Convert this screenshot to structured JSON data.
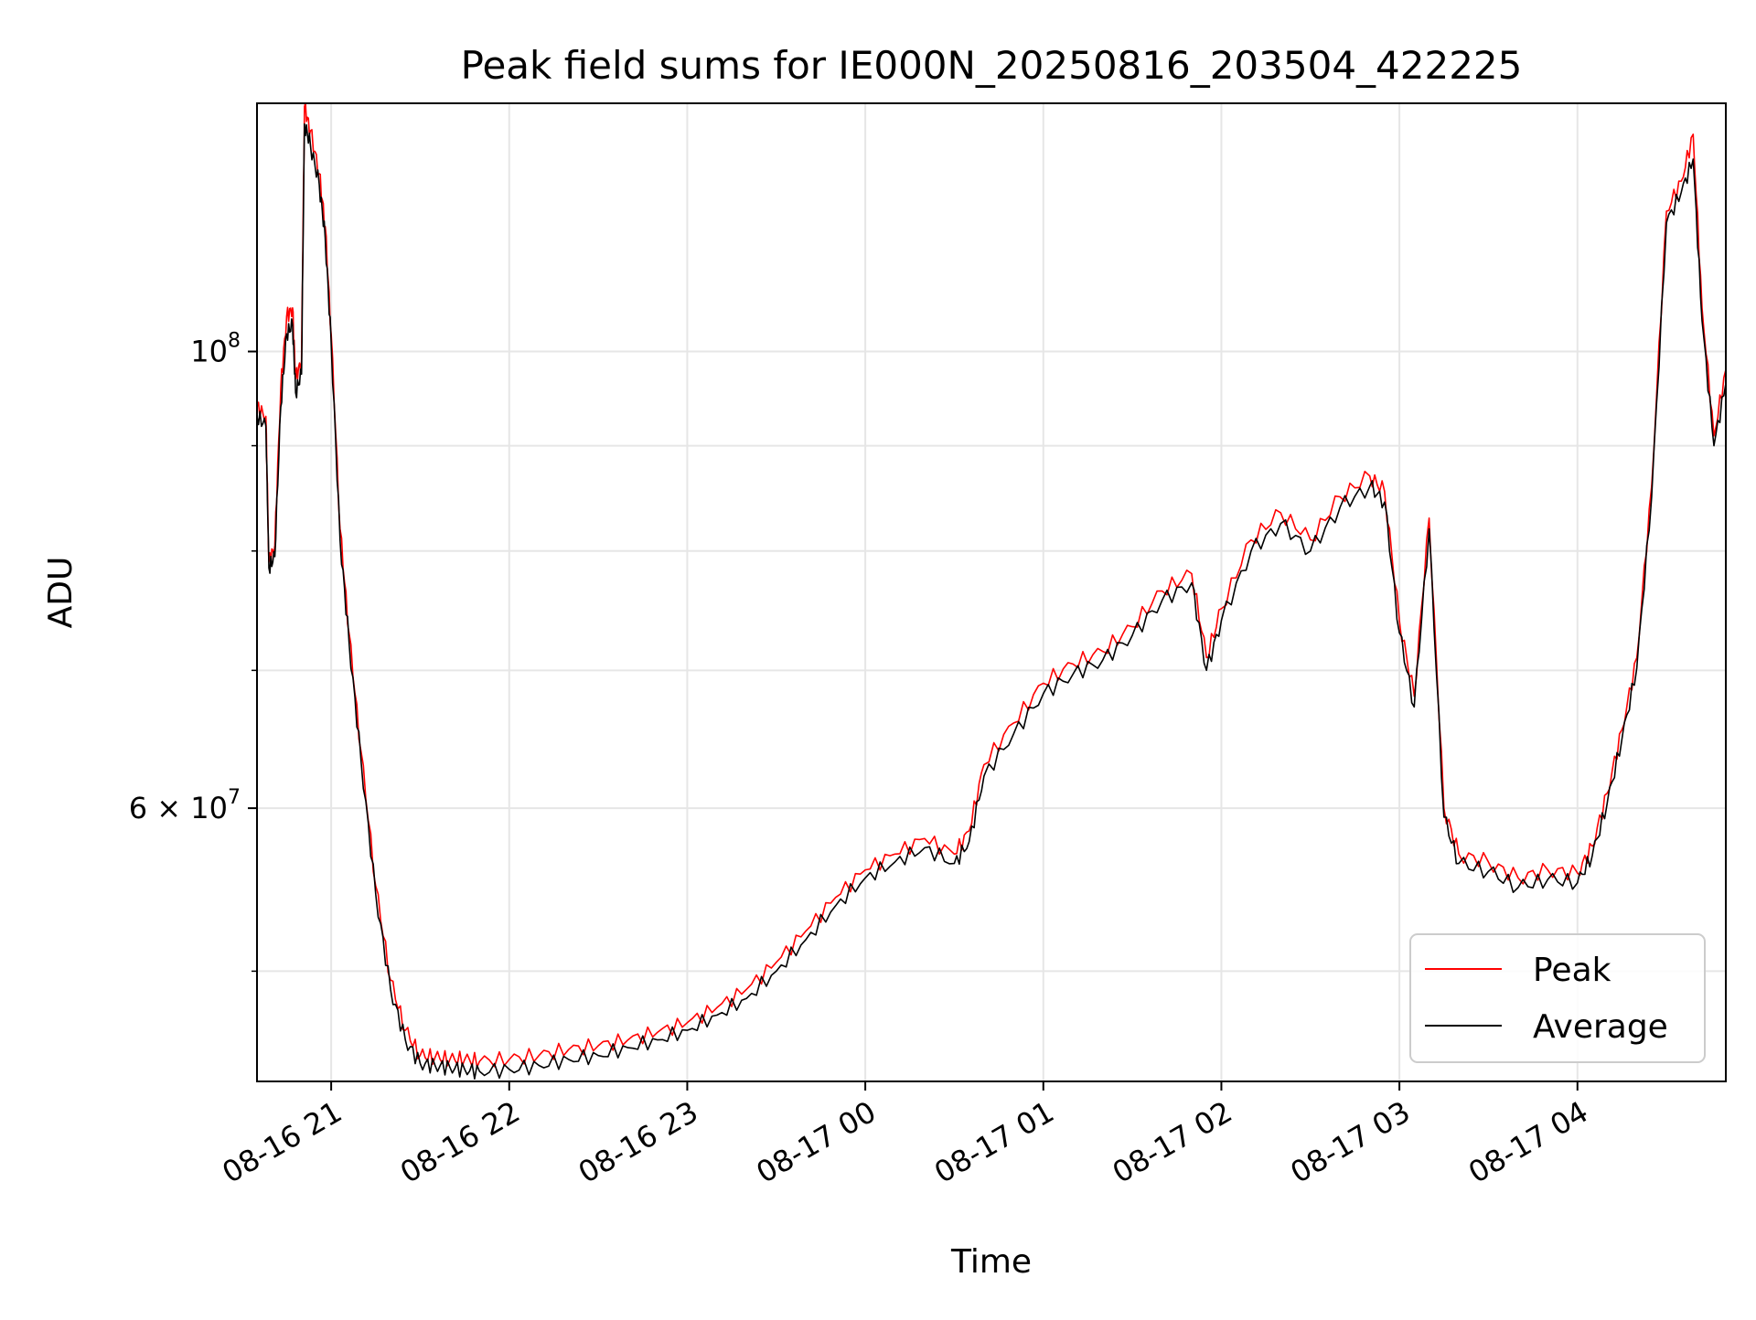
{
  "chart_data": {
    "type": "line",
    "title": "Peak field sums for IE000N_20250816_203504_422225",
    "xlabel": "Time",
    "ylabel": "ADU",
    "y_scale": "log",
    "ylim": [
      44200000,
      132000000
    ],
    "xlim": [
      "2025-08-16 20:35",
      "2025-08-17 04:50"
    ],
    "grid": true,
    "legend_position": "lower-right",
    "x_ticks": [
      {
        "t": "2025-08-16 21:00",
        "label": "08-16 21"
      },
      {
        "t": "2025-08-16 22:00",
        "label": "08-16 22"
      },
      {
        "t": "2025-08-16 23:00",
        "label": "08-16 23"
      },
      {
        "t": "2025-08-17 00:00",
        "label": "08-17 00"
      },
      {
        "t": "2025-08-17 01:00",
        "label": "08-17 01"
      },
      {
        "t": "2025-08-17 02:00",
        "label": "08-17 02"
      },
      {
        "t": "2025-08-17 03:00",
        "label": "08-17 03"
      },
      {
        "t": "2025-08-17 04:00",
        "label": "08-17 04"
      }
    ],
    "y_major_ticks": [
      {
        "value": 100000000,
        "base": "10",
        "exp": "8"
      },
      {
        "value": 60000000,
        "mant": "6",
        "base": "10",
        "exp": "7"
      }
    ],
    "y_minor_ticks": [
      50000000,
      70000000,
      80000000,
      90000000
    ],
    "series": [
      {
        "name": "Peak",
        "color": "#ff0000",
        "points": [
          [
            "2025-08-16 20:35",
            94000000
          ],
          [
            "2025-08-16 20:38",
            93000000
          ],
          [
            "2025-08-16 20:39",
            79000000
          ],
          [
            "2025-08-16 20:41",
            80500000
          ],
          [
            "2025-08-16 20:43",
            96000000
          ],
          [
            "2025-08-16 20:45",
            104000000
          ],
          [
            "2025-08-16 20:47",
            105000000
          ],
          [
            "2025-08-16 20:48",
            97000000
          ],
          [
            "2025-08-16 20:50",
            99000000
          ],
          [
            "2025-08-16 20:51",
            131500000
          ],
          [
            "2025-08-16 20:53",
            128000000
          ],
          [
            "2025-08-16 20:56",
            122000000
          ],
          [
            "2025-08-16 20:58",
            115000000
          ],
          [
            "2025-08-16 21:00",
            102000000
          ],
          [
            "2025-08-16 21:03",
            82000000
          ],
          [
            "2025-08-16 21:06",
            73000000
          ],
          [
            "2025-08-16 21:10",
            64000000
          ],
          [
            "2025-08-16 21:15",
            55000000
          ],
          [
            "2025-08-16 21:20",
            49500000
          ],
          [
            "2025-08-16 21:25",
            46800000
          ],
          [
            "2025-08-16 21:30",
            45500000
          ],
          [
            "2025-08-16 21:35",
            45400000
          ],
          [
            "2025-08-16 21:40",
            45300000
          ],
          [
            "2025-08-16 21:45",
            45300000
          ],
          [
            "2025-08-16 21:50",
            45200000
          ],
          [
            "2025-08-16 22:00",
            45300000
          ],
          [
            "2025-08-16 22:10",
            45500000
          ],
          [
            "2025-08-16 22:20",
            45800000
          ],
          [
            "2025-08-16 22:30",
            46000000
          ],
          [
            "2025-08-16 22:40",
            46300000
          ],
          [
            "2025-08-16 22:50",
            46700000
          ],
          [
            "2025-08-16 23:00",
            47200000
          ],
          [
            "2025-08-16 23:10",
            48000000
          ],
          [
            "2025-08-16 23:20",
            49000000
          ],
          [
            "2025-08-16 23:30",
            50500000
          ],
          [
            "2025-08-16 23:40",
            52300000
          ],
          [
            "2025-08-16 23:50",
            54300000
          ],
          [
            "2025-08-17 00:00",
            56000000
          ],
          [
            "2025-08-17 00:10",
            57000000
          ],
          [
            "2025-08-17 00:20",
            58000000
          ],
          [
            "2025-08-17 00:30",
            57000000
          ],
          [
            "2025-08-17 00:35",
            58500000
          ],
          [
            "2025-08-17 00:40",
            63000000
          ],
          [
            "2025-08-17 00:50",
            66000000
          ],
          [
            "2025-08-17 01:00",
            69000000
          ],
          [
            "2025-08-17 01:10",
            70500000
          ],
          [
            "2025-08-17 01:20",
            71500000
          ],
          [
            "2025-08-17 01:30",
            73500000
          ],
          [
            "2025-08-17 01:40",
            76500000
          ],
          [
            "2025-08-17 01:50",
            78000000
          ],
          [
            "2025-08-17 01:55",
            71000000
          ],
          [
            "2025-08-17 02:00",
            75000000
          ],
          [
            "2025-08-17 02:10",
            81000000
          ],
          [
            "2025-08-17 02:20",
            83500000
          ],
          [
            "2025-08-17 02:30",
            81000000
          ],
          [
            "2025-08-17 02:40",
            85000000
          ],
          [
            "2025-08-17 02:50",
            87000000
          ],
          [
            "2025-08-17 02:55",
            85500000
          ],
          [
            "2025-08-17 03:00",
            74000000
          ],
          [
            "2025-08-17 03:05",
            68000000
          ],
          [
            "2025-08-17 03:10",
            83000000
          ],
          [
            "2025-08-17 03:15",
            60000000
          ],
          [
            "2025-08-17 03:20",
            57000000
          ],
          [
            "2025-08-17 03:30",
            56500000
          ],
          [
            "2025-08-17 03:40",
            55500000
          ],
          [
            "2025-08-17 03:50",
            56000000
          ],
          [
            "2025-08-17 04:00",
            55800000
          ],
          [
            "2025-08-17 04:05",
            57500000
          ],
          [
            "2025-08-17 04:10",
            61000000
          ],
          [
            "2025-08-17 04:15",
            65500000
          ],
          [
            "2025-08-17 04:20",
            71000000
          ],
          [
            "2025-08-17 04:25",
            86000000
          ],
          [
            "2025-08-17 04:30",
            117000000
          ],
          [
            "2025-08-17 04:35",
            121000000
          ],
          [
            "2025-08-17 04:39",
            127500000
          ],
          [
            "2025-08-17 04:42",
            105000000
          ],
          [
            "2025-08-17 04:46",
            91000000
          ],
          [
            "2025-08-17 04:50",
            98000000
          ]
        ]
      },
      {
        "name": "Average",
        "color": "#000000",
        "points": [
          [
            "2025-08-16 20:35",
            93000000
          ],
          [
            "2025-08-16 20:38",
            92000000
          ],
          [
            "2025-08-16 20:39",
            78500000
          ],
          [
            "2025-08-16 20:41",
            79500000
          ],
          [
            "2025-08-16 20:43",
            94000000
          ],
          [
            "2025-08-16 20:45",
            102000000
          ],
          [
            "2025-08-16 20:47",
            103000000
          ],
          [
            "2025-08-16 20:48",
            95500000
          ],
          [
            "2025-08-16 20:50",
            97500000
          ],
          [
            "2025-08-16 20:51",
            129000000
          ],
          [
            "2025-08-16 20:53",
            126000000
          ],
          [
            "2025-08-16 20:56",
            120500000
          ],
          [
            "2025-08-16 20:58",
            113500000
          ],
          [
            "2025-08-16 21:00",
            101000000
          ],
          [
            "2025-08-16 21:03",
            81000000
          ],
          [
            "2025-08-16 21:06",
            72300000
          ],
          [
            "2025-08-16 21:10",
            63400000
          ],
          [
            "2025-08-16 21:15",
            54500000
          ],
          [
            "2025-08-16 21:20",
            49000000
          ],
          [
            "2025-08-16 21:25",
            46300000
          ],
          [
            "2025-08-16 21:30",
            45100000
          ],
          [
            "2025-08-16 21:35",
            45000000
          ],
          [
            "2025-08-16 21:40",
            44900000
          ],
          [
            "2025-08-16 21:45",
            44800000
          ],
          [
            "2025-08-16 21:50",
            44700000
          ],
          [
            "2025-08-16 22:00",
            44800000
          ],
          [
            "2025-08-16 22:10",
            45000000
          ],
          [
            "2025-08-16 22:20",
            45300000
          ],
          [
            "2025-08-16 22:30",
            45500000
          ],
          [
            "2025-08-16 22:40",
            45900000
          ],
          [
            "2025-08-16 22:50",
            46300000
          ],
          [
            "2025-08-16 23:00",
            46800000
          ],
          [
            "2025-08-16 23:10",
            47600000
          ],
          [
            "2025-08-16 23:20",
            48500000
          ],
          [
            "2025-08-16 23:30",
            50000000
          ],
          [
            "2025-08-16 23:40",
            51800000
          ],
          [
            "2025-08-16 23:50",
            53800000
          ],
          [
            "2025-08-17 00:00",
            55500000
          ],
          [
            "2025-08-17 00:10",
            56500000
          ],
          [
            "2025-08-17 00:20",
            57400000
          ],
          [
            "2025-08-17 00:30",
            56400000
          ],
          [
            "2025-08-17 00:35",
            57800000
          ],
          [
            "2025-08-17 00:40",
            62200000
          ],
          [
            "2025-08-17 00:50",
            65200000
          ],
          [
            "2025-08-17 01:00",
            68200000
          ],
          [
            "2025-08-17 01:10",
            69700000
          ],
          [
            "2025-08-17 01:20",
            70800000
          ],
          [
            "2025-08-17 01:30",
            72800000
          ],
          [
            "2025-08-17 01:40",
            75700000
          ],
          [
            "2025-08-17 01:50",
            77200000
          ],
          [
            "2025-08-17 01:55",
            70000000
          ],
          [
            "2025-08-17 02:00",
            74000000
          ],
          [
            "2025-08-17 02:10",
            80000000
          ],
          [
            "2025-08-17 02:20",
            82500000
          ],
          [
            "2025-08-17 02:30",
            80000000
          ],
          [
            "2025-08-17 02:40",
            84000000
          ],
          [
            "2025-08-17 02:50",
            86000000
          ],
          [
            "2025-08-17 02:55",
            84500000
          ],
          [
            "2025-08-17 03:00",
            73000000
          ],
          [
            "2025-08-17 03:05",
            67200000
          ],
          [
            "2025-08-17 03:10",
            82000000
          ],
          [
            "2025-08-17 03:15",
            59400000
          ],
          [
            "2025-08-17 03:20",
            56400000
          ],
          [
            "2025-08-17 03:30",
            55900000
          ],
          [
            "2025-08-17 03:40",
            54900000
          ],
          [
            "2025-08-17 03:50",
            55400000
          ],
          [
            "2025-08-17 04:00",
            55200000
          ],
          [
            "2025-08-17 04:05",
            56900000
          ],
          [
            "2025-08-17 04:10",
            60300000
          ],
          [
            "2025-08-17 04:15",
            64800000
          ],
          [
            "2025-08-17 04:20",
            70200000
          ],
          [
            "2025-08-17 04:25",
            85000000
          ],
          [
            "2025-08-17 04:30",
            115500000
          ],
          [
            "2025-08-17 04:35",
            119500000
          ],
          [
            "2025-08-17 04:39",
            124000000
          ],
          [
            "2025-08-17 04:42",
            103500000
          ],
          [
            "2025-08-17 04:46",
            90000000
          ],
          [
            "2025-08-17 04:50",
            96500000
          ]
        ]
      }
    ]
  }
}
